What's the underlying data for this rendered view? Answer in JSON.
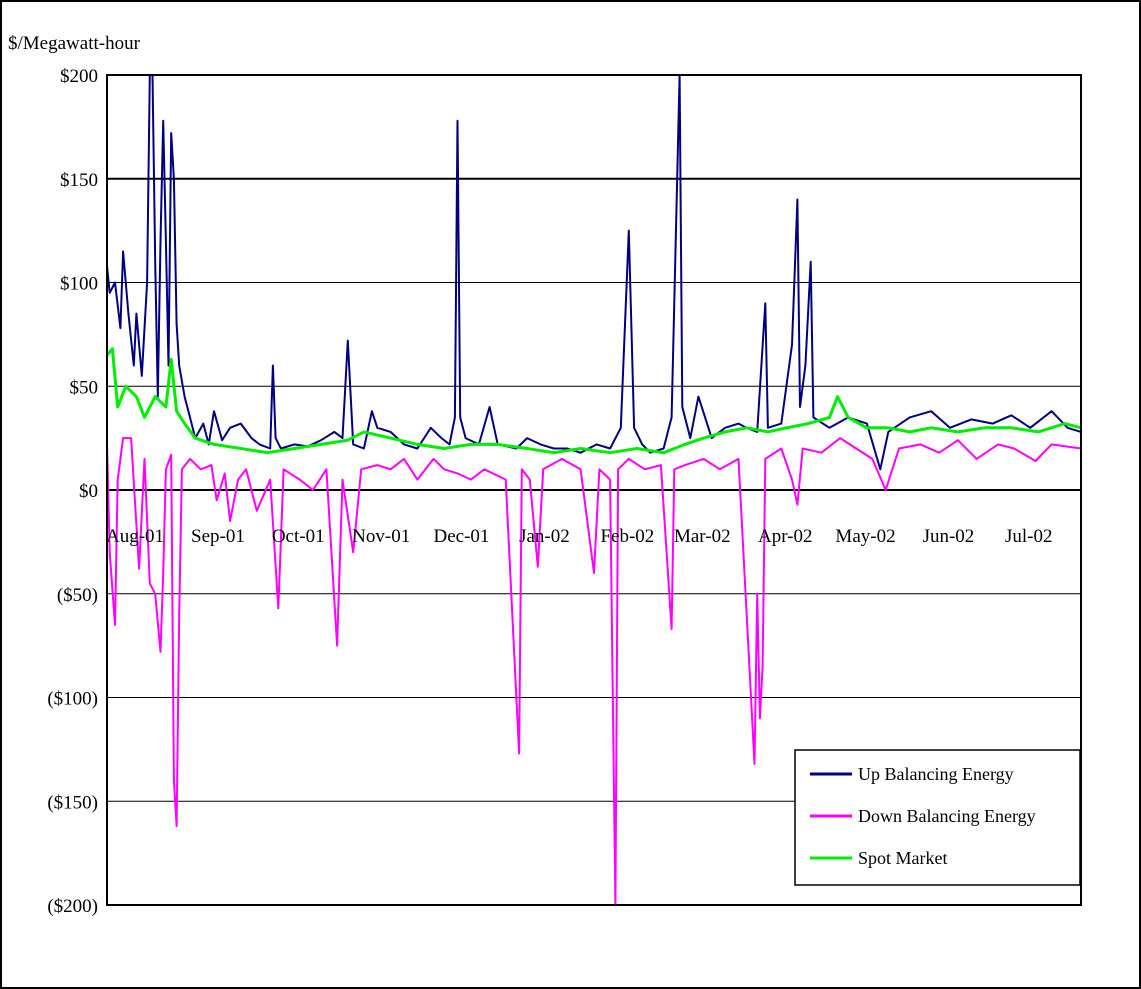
{
  "chart_data": {
    "type": "line",
    "ylabel": "$/Megawatt-hour",
    "xlabel": "",
    "title": "",
    "ylim": [
      -200,
      200
    ],
    "y_ticks": [
      200,
      150,
      100,
      50,
      0,
      -50,
      -100,
      -150,
      -200
    ],
    "y_tick_labels": [
      "$200",
      "$150",
      "$100",
      "$50",
      "$0",
      "($50)",
      "($100)",
      "($150)",
      "($200)"
    ],
    "x_range": [
      "2001-08-01",
      "2002-07-31"
    ],
    "x_tick_labels": [
      "Aug-01",
      "Sep-01",
      "Oct-01",
      "Nov-01",
      "Dec-01",
      "Jan-02",
      "Feb-02",
      "Mar-02",
      "Apr-02",
      "May-02",
      "Jun-02",
      "Jul-02"
    ],
    "grid": "horizontal",
    "legend_position": "bottom-right",
    "series": [
      {
        "name": "Up Balancing Energy",
        "color": "#000080",
        "points": [
          [
            "2001-08-01",
            108
          ],
          [
            "2001-08-02",
            95
          ],
          [
            "2001-08-04",
            100
          ],
          [
            "2001-08-06",
            78
          ],
          [
            "2001-08-07",
            115
          ],
          [
            "2001-08-09",
            85
          ],
          [
            "2001-08-11",
            60
          ],
          [
            "2001-08-12",
            85
          ],
          [
            "2001-08-14",
            55
          ],
          [
            "2001-08-16",
            100
          ],
          [
            "2001-08-17",
            200
          ],
          [
            "2001-08-18",
            200
          ],
          [
            "2001-08-19",
            110
          ],
          [
            "2001-08-20",
            45
          ],
          [
            "2001-08-21",
            120
          ],
          [
            "2001-08-22",
            178
          ],
          [
            "2001-08-23",
            120
          ],
          [
            "2001-08-24",
            60
          ],
          [
            "2001-08-25",
            172
          ],
          [
            "2001-08-26",
            150
          ],
          [
            "2001-08-27",
            80
          ],
          [
            "2001-08-28",
            60
          ],
          [
            "2001-08-30",
            45
          ],
          [
            "2001-09-01",
            35
          ],
          [
            "2001-09-03",
            25
          ],
          [
            "2001-09-06",
            32
          ],
          [
            "2001-09-08",
            22
          ],
          [
            "2001-09-10",
            38
          ],
          [
            "2001-09-13",
            24
          ],
          [
            "2001-09-16",
            30
          ],
          [
            "2001-09-20",
            32
          ],
          [
            "2001-09-24",
            25
          ],
          [
            "2001-09-27",
            22
          ],
          [
            "2001-10-01",
            20
          ],
          [
            "2001-10-02",
            60
          ],
          [
            "2001-10-03",
            25
          ],
          [
            "2001-10-05",
            20
          ],
          [
            "2001-10-10",
            22
          ],
          [
            "2001-10-15",
            21
          ],
          [
            "2001-10-20",
            24
          ],
          [
            "2001-10-25",
            28
          ],
          [
            "2001-10-28",
            25
          ],
          [
            "2001-10-30",
            72
          ],
          [
            "2001-11-01",
            22
          ],
          [
            "2001-11-05",
            20
          ],
          [
            "2001-11-08",
            38
          ],
          [
            "2001-11-10",
            30
          ],
          [
            "2001-11-15",
            28
          ],
          [
            "2001-11-20",
            22
          ],
          [
            "2001-11-25",
            20
          ],
          [
            "2001-11-30",
            30
          ],
          [
            "2001-12-04",
            25
          ],
          [
            "2001-12-07",
            22
          ],
          [
            "2001-12-09",
            35
          ],
          [
            "2001-12-10",
            178
          ],
          [
            "2001-12-11",
            35
          ],
          [
            "2001-12-13",
            25
          ],
          [
            "2001-12-18",
            22
          ],
          [
            "2001-12-22",
            40
          ],
          [
            "2001-12-25",
            22
          ],
          [
            "2002-01-01",
            20
          ],
          [
            "2002-01-05",
            25
          ],
          [
            "2002-01-10",
            22
          ],
          [
            "2002-01-15",
            20
          ],
          [
            "2002-01-20",
            20
          ],
          [
            "2002-01-25",
            18
          ],
          [
            "2002-01-31",
            22
          ],
          [
            "2002-02-05",
            20
          ],
          [
            "2002-02-09",
            30
          ],
          [
            "2002-02-12",
            125
          ],
          [
            "2002-02-14",
            30
          ],
          [
            "2002-02-17",
            22
          ],
          [
            "2002-02-20",
            18
          ],
          [
            "2002-02-25",
            20
          ],
          [
            "2002-02-28",
            35
          ],
          [
            "2002-03-03",
            200
          ],
          [
            "2002-03-04",
            40
          ],
          [
            "2002-03-07",
            25
          ],
          [
            "2002-03-10",
            45
          ],
          [
            "2002-03-15",
            25
          ],
          [
            "2002-03-20",
            30
          ],
          [
            "2002-03-25",
            32
          ],
          [
            "2002-03-28",
            30
          ],
          [
            "2002-04-01",
            28
          ],
          [
            "2002-04-04",
            90
          ],
          [
            "2002-04-05",
            30
          ],
          [
            "2002-04-10",
            32
          ],
          [
            "2002-04-14",
            70
          ],
          [
            "2002-04-16",
            140
          ],
          [
            "2002-04-17",
            40
          ],
          [
            "2002-04-19",
            60
          ],
          [
            "2002-04-21",
            110
          ],
          [
            "2002-04-22",
            35
          ],
          [
            "2002-04-28",
            30
          ],
          [
            "2002-05-05",
            35
          ],
          [
            "2002-05-12",
            32
          ],
          [
            "2002-05-17",
            10
          ],
          [
            "2002-05-20",
            28
          ],
          [
            "2002-05-28",
            35
          ],
          [
            "2002-06-05",
            38
          ],
          [
            "2002-06-12",
            30
          ],
          [
            "2002-06-20",
            34
          ],
          [
            "2002-06-28",
            32
          ],
          [
            "2002-07-05",
            36
          ],
          [
            "2002-07-12",
            30
          ],
          [
            "2002-07-20",
            38
          ],
          [
            "2002-07-26",
            30
          ],
          [
            "2002-07-31",
            28
          ]
        ]
      },
      {
        "name": "Down Balancing Energy",
        "color": "#ff00ff",
        "points": [
          [
            "2001-08-01",
            22
          ],
          [
            "2001-08-02",
            -30
          ],
          [
            "2001-08-04",
            -65
          ],
          [
            "2001-08-05",
            5
          ],
          [
            "2001-08-07",
            25
          ],
          [
            "2001-08-10",
            25
          ],
          [
            "2001-08-13",
            -38
          ],
          [
            "2001-08-15",
            15
          ],
          [
            "2001-08-17",
            -45
          ],
          [
            "2001-08-19",
            -50
          ],
          [
            "2001-08-21",
            -78
          ],
          [
            "2001-08-22",
            -40
          ],
          [
            "2001-08-23",
            10
          ],
          [
            "2001-08-25",
            17
          ],
          [
            "2001-08-26",
            -140
          ],
          [
            "2001-08-27",
            -162
          ],
          [
            "2001-08-28",
            -60
          ],
          [
            "2001-08-29",
            10
          ],
          [
            "2001-09-01",
            15
          ],
          [
            "2001-09-05",
            10
          ],
          [
            "2001-09-09",
            12
          ],
          [
            "2001-09-11",
            -5
          ],
          [
            "2001-09-14",
            8
          ],
          [
            "2001-09-16",
            -15
          ],
          [
            "2001-09-19",
            5
          ],
          [
            "2001-09-22",
            10
          ],
          [
            "2001-09-26",
            -10
          ],
          [
            "2001-10-01",
            5
          ],
          [
            "2001-10-04",
            -57
          ],
          [
            "2001-10-06",
            10
          ],
          [
            "2001-10-12",
            5
          ],
          [
            "2001-10-17",
            0
          ],
          [
            "2001-10-22",
            10
          ],
          [
            "2001-10-26",
            -75
          ],
          [
            "2001-10-28",
            5
          ],
          [
            "2001-11-01",
            -30
          ],
          [
            "2001-11-04",
            10
          ],
          [
            "2001-11-10",
            12
          ],
          [
            "2001-11-15",
            10
          ],
          [
            "2001-11-20",
            15
          ],
          [
            "2001-11-25",
            5
          ],
          [
            "2001-12-01",
            15
          ],
          [
            "2001-12-05",
            10
          ],
          [
            "2001-12-10",
            8
          ],
          [
            "2001-12-15",
            5
          ],
          [
            "2001-12-20",
            10
          ],
          [
            "2001-12-28",
            5
          ],
          [
            "2002-01-02",
            -127
          ],
          [
            "2002-01-03",
            10
          ],
          [
            "2002-01-06",
            5
          ],
          [
            "2002-01-09",
            -37
          ],
          [
            "2002-01-11",
            10
          ],
          [
            "2002-01-18",
            15
          ],
          [
            "2002-01-25",
            10
          ],
          [
            "2002-01-30",
            -40
          ],
          [
            "2002-02-01",
            10
          ],
          [
            "2002-02-05",
            5
          ],
          [
            "2002-02-07",
            -200
          ],
          [
            "2002-02-08",
            10
          ],
          [
            "2002-02-12",
            15
          ],
          [
            "2002-02-18",
            10
          ],
          [
            "2002-02-24",
            12
          ],
          [
            "2002-02-28",
            -67
          ],
          [
            "2002-03-01",
            10
          ],
          [
            "2002-03-05",
            12
          ],
          [
            "2002-03-12",
            15
          ],
          [
            "2002-03-18",
            10
          ],
          [
            "2002-03-25",
            15
          ],
          [
            "2002-03-31",
            -132
          ],
          [
            "2002-04-01",
            -50
          ],
          [
            "2002-04-02",
            -110
          ],
          [
            "2002-04-03",
            -85
          ],
          [
            "2002-04-04",
            15
          ],
          [
            "2002-04-10",
            20
          ],
          [
            "2002-04-14",
            5
          ],
          [
            "2002-04-16",
            -7
          ],
          [
            "2002-04-18",
            20
          ],
          [
            "2002-04-25",
            18
          ],
          [
            "2002-05-02",
            25
          ],
          [
            "2002-05-08",
            20
          ],
          [
            "2002-05-14",
            15
          ],
          [
            "2002-05-19",
            0
          ],
          [
            "2002-05-24",
            20
          ],
          [
            "2002-06-01",
            22
          ],
          [
            "2002-06-08",
            18
          ],
          [
            "2002-06-15",
            24
          ],
          [
            "2002-06-22",
            15
          ],
          [
            "2002-06-30",
            22
          ],
          [
            "2002-07-06",
            20
          ],
          [
            "2002-07-14",
            14
          ],
          [
            "2002-07-20",
            22
          ],
          [
            "2002-07-31",
            20
          ]
        ]
      },
      {
        "name": "Spot Market",
        "color": "#00ee00",
        "points": [
          [
            "2001-08-01",
            65
          ],
          [
            "2001-08-03",
            68
          ],
          [
            "2001-08-05",
            40
          ],
          [
            "2001-08-08",
            50
          ],
          [
            "2001-08-12",
            45
          ],
          [
            "2001-08-15",
            35
          ],
          [
            "2001-08-19",
            45
          ],
          [
            "2001-08-23",
            40
          ],
          [
            "2001-08-25",
            63
          ],
          [
            "2001-08-27",
            38
          ],
          [
            "2001-08-30",
            32
          ],
          [
            "2001-09-03",
            25
          ],
          [
            "2001-09-10",
            22
          ],
          [
            "2001-09-20",
            20
          ],
          [
            "2001-09-30",
            18
          ],
          [
            "2001-10-10",
            20
          ],
          [
            "2001-10-20",
            22
          ],
          [
            "2001-10-30",
            24
          ],
          [
            "2001-11-05",
            28
          ],
          [
            "2001-11-15",
            25
          ],
          [
            "2001-11-25",
            22
          ],
          [
            "2001-12-05",
            20
          ],
          [
            "2001-12-15",
            22
          ],
          [
            "2001-12-25",
            22
          ],
          [
            "2002-01-05",
            20
          ],
          [
            "2002-01-15",
            18
          ],
          [
            "2002-01-25",
            20
          ],
          [
            "2002-02-05",
            18
          ],
          [
            "2002-02-15",
            20
          ],
          [
            "2002-02-25",
            18
          ],
          [
            "2002-03-05",
            22
          ],
          [
            "2002-03-12",
            25
          ],
          [
            "2002-03-20",
            28
          ],
          [
            "2002-03-28",
            30
          ],
          [
            "2002-04-05",
            28
          ],
          [
            "2002-04-12",
            30
          ],
          [
            "2002-04-20",
            32
          ],
          [
            "2002-04-28",
            35
          ],
          [
            "2002-05-01",
            45
          ],
          [
            "2002-05-05",
            35
          ],
          [
            "2002-05-12",
            30
          ],
          [
            "2002-05-20",
            30
          ],
          [
            "2002-05-28",
            28
          ],
          [
            "2002-06-05",
            30
          ],
          [
            "2002-06-15",
            28
          ],
          [
            "2002-06-25",
            30
          ],
          [
            "2002-07-05",
            30
          ],
          [
            "2002-07-15",
            28
          ],
          [
            "2002-07-25",
            32
          ],
          [
            "2002-07-31",
            30
          ]
        ]
      }
    ]
  }
}
